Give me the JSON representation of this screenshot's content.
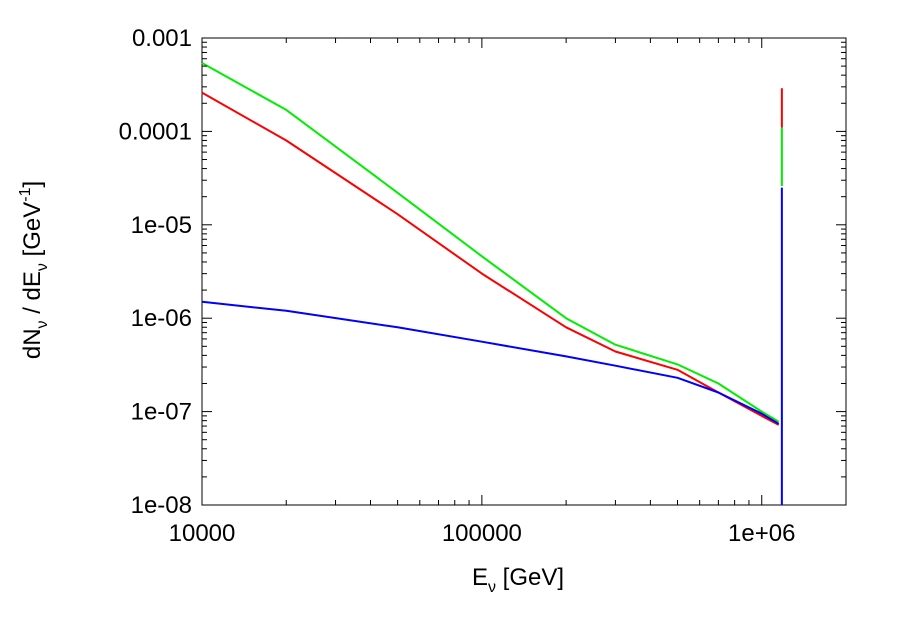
{
  "chart_data": {
    "type": "line",
    "xscale": "log",
    "yscale": "log",
    "xlim": [
      10000,
      2000000
    ],
    "ylim": [
      1e-08,
      0.001
    ],
    "xlabel": {
      "main": "E",
      "sub": "ν",
      "unit": " [GeV]"
    },
    "ylabel": {
      "part1": "dN",
      "sub1": "ν",
      "part2": " / dE",
      "sub2": "ν",
      "part3": " [GeV",
      "sup": "-1",
      "part4": "]"
    },
    "x_ticks": [
      {
        "value": 10000,
        "label": "10000"
      },
      {
        "value": 100000,
        "label": "100000"
      },
      {
        "value": 1000000,
        "label": "1e+06"
      }
    ],
    "y_ticks": [
      {
        "value": 0.001,
        "label": "0.001"
      },
      {
        "value": 0.0001,
        "label": "0.0001"
      },
      {
        "value": 1e-05,
        "label": "1e-05"
      },
      {
        "value": 1e-06,
        "label": "1e-06"
      },
      {
        "value": 1e-07,
        "label": "1e-07"
      },
      {
        "value": 1e-08,
        "label": "1e-08"
      }
    ],
    "grid": false,
    "legend": "none",
    "series": [
      {
        "color": "#00ee00",
        "x": [
          10000,
          20000,
          50000,
          100000,
          200000,
          300000,
          500000,
          700000,
          1000000,
          1150000
        ],
        "y": [
          0.00054,
          0.00017,
          2.2e-05,
          4.6e-06,
          1e-06,
          5.2e-07,
          3.2e-07,
          2e-07,
          1e-07,
          7.8e-08
        ],
        "spike": {
          "x": 1180000,
          "y": [
            0.00011,
            2.6e-05
          ]
        }
      },
      {
        "color": "#ff0000",
        "x": [
          10000,
          20000,
          50000,
          100000,
          200000,
          300000,
          500000,
          700000,
          1000000,
          1150000
        ],
        "y": [
          0.00026,
          8e-05,
          1.3e-05,
          3e-06,
          8e-07,
          4.4e-07,
          2.8e-07,
          1.6e-07,
          9e-08,
          7.2e-08
        ],
        "spike": {
          "x": 1180000,
          "y": [
            0.00029,
            0.00011
          ]
        }
      },
      {
        "color": "#0000ff",
        "x": [
          10000,
          20000,
          50000,
          100000,
          200000,
          300000,
          500000,
          700000,
          1000000,
          1150000
        ],
        "y": [
          1.5e-06,
          1.2e-06,
          8e-07,
          5.6e-07,
          3.9e-07,
          3.1e-07,
          2.3e-07,
          1.6e-07,
          9.5e-08,
          7.4e-08
        ],
        "spike": {
          "x": 1180000,
          "y": [
            2.5e-05,
            1e-08
          ]
        }
      }
    ]
  }
}
